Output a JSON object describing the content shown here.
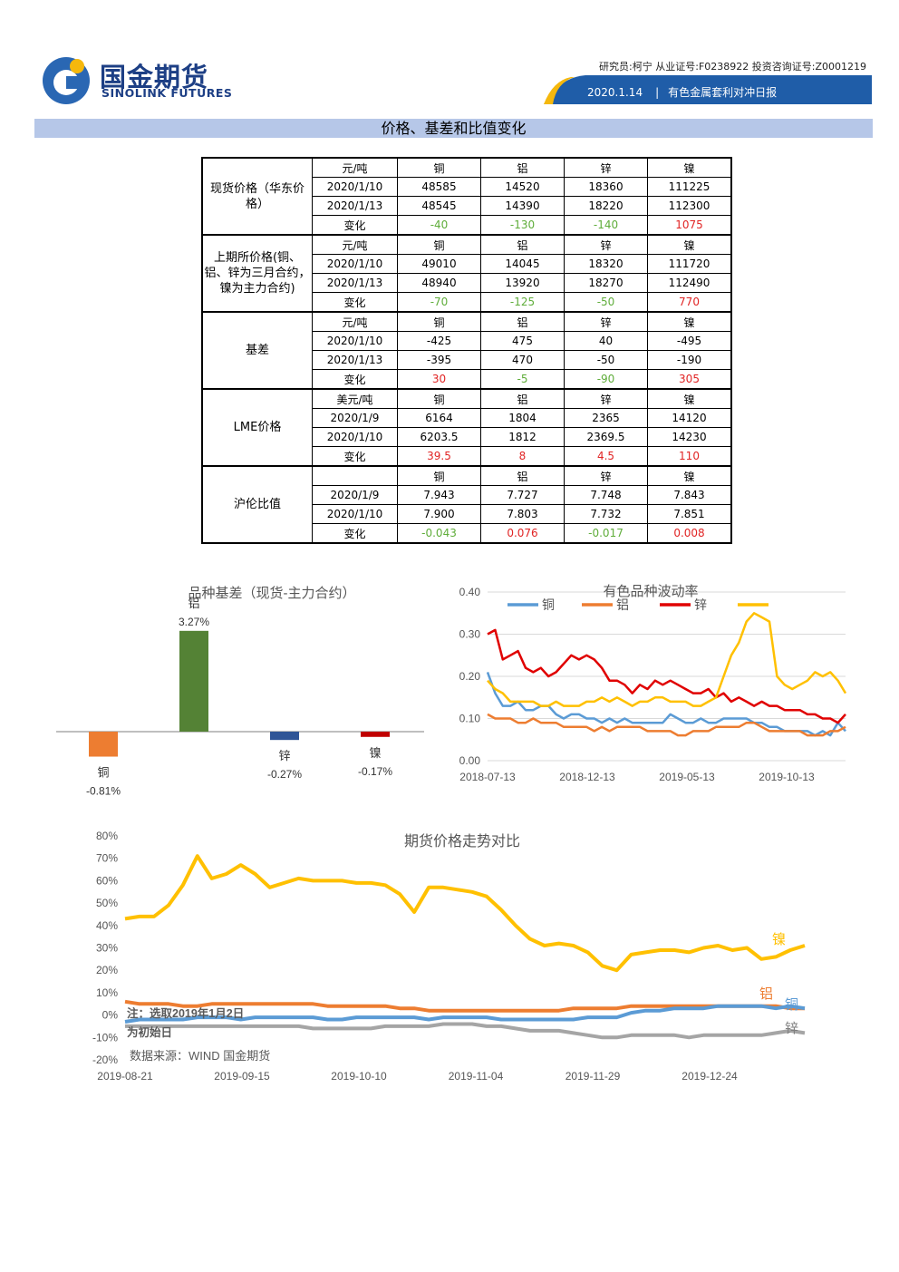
{
  "header": {
    "logo_cn": "国金期货",
    "logo_en": "SINOLINK FUTURES",
    "researcher": "研究员:柯宁 从业证号:F0238922 投资咨询证号:Z0001219",
    "date": "2020.1.14",
    "report_name": "有色金属套利对冲日报"
  },
  "section_title": "价格、基差和比值变化",
  "table": {
    "groups": [
      {
        "label": "现货价格（华东价格）",
        "rows": [
          [
            "元/吨",
            "铜",
            "铝",
            "锌",
            "镍"
          ],
          [
            "2020/1/10",
            "48585",
            "14520",
            "18360",
            "111225"
          ],
          [
            "2020/1/13",
            "48545",
            "14390",
            "18220",
            "112300"
          ],
          [
            "变化",
            "-40",
            "-130",
            "-140",
            "1075"
          ]
        ]
      },
      {
        "label": "上期所价格(铜、铝、锌为三月合约，镍为主力合约)",
        "rows": [
          [
            "元/吨",
            "铜",
            "铝",
            "锌",
            "镍"
          ],
          [
            "2020/1/10",
            "49010",
            "14045",
            "18320",
            "111720"
          ],
          [
            "2020/1/13",
            "48940",
            "13920",
            "18270",
            "112490"
          ],
          [
            "变化",
            "-70",
            "-125",
            "-50",
            "770"
          ]
        ]
      },
      {
        "label": "基差",
        "rows": [
          [
            "元/吨",
            "铜",
            "铝",
            "锌",
            "镍"
          ],
          [
            "2020/1/10",
            "-425",
            "475",
            "40",
            "-495"
          ],
          [
            "2020/1/13",
            "-395",
            "470",
            "-50",
            "-190"
          ],
          [
            "变化",
            "30",
            "-5",
            "-90",
            "305"
          ]
        ]
      },
      {
        "label": "LME价格",
        "rows": [
          [
            "美元/吨",
            "铜",
            "铝",
            "锌",
            "镍"
          ],
          [
            "2020/1/9",
            "6164",
            "1804",
            "2365",
            "14120"
          ],
          [
            "2020/1/10",
            "6203.5",
            "1812",
            "2369.5",
            "14230"
          ],
          [
            "变化",
            "39.5",
            "8",
            "4.5",
            "110"
          ]
        ]
      },
      {
        "label": "沪伦比值",
        "rows": [
          [
            "",
            "铜",
            "铝",
            "锌",
            "镍"
          ],
          [
            "2020/1/9",
            "7.943",
            "7.727",
            "7.748",
            "7.843"
          ],
          [
            "2020/1/10",
            "7.900",
            "7.803",
            "7.732",
            "7.851"
          ],
          [
            "变化",
            "-0.043",
            "0.076",
            "-0.017",
            "0.008"
          ]
        ]
      }
    ]
  },
  "chart_data": [
    {
      "type": "bar",
      "title": "品种基差（现货-主力合约）",
      "categories": [
        "铜",
        "铝",
        "锌",
        "镍"
      ],
      "values": [
        -0.81,
        3.27,
        -0.27,
        -0.17
      ],
      "value_labels": [
        "-0.81%",
        "3.27%",
        "-0.27%",
        "-0.17%"
      ],
      "colors": [
        "#ed7d31",
        "#548235",
        "#2f5597",
        "#c00000"
      ]
    },
    {
      "type": "line",
      "title": "有色品种波动率",
      "x_ticks": [
        "2018-07-13",
        "2018-12-13",
        "2019-05-13",
        "2019-10-13"
      ],
      "ylim": [
        0,
        0.4
      ],
      "y_ticks": [
        "0.00",
        "0.10",
        "0.20",
        "0.30",
        "0.40"
      ],
      "legend_position": "top",
      "series": [
        {
          "name": "铜",
          "color": "#5b9bd5",
          "values": [
            0.21,
            0.16,
            0.13,
            0.13,
            0.14,
            0.12,
            0.12,
            0.13,
            0.13,
            0.11,
            0.1,
            0.11,
            0.11,
            0.1,
            0.1,
            0.09,
            0.1,
            0.09,
            0.1,
            0.09,
            0.09,
            0.09,
            0.09,
            0.09,
            0.11,
            0.1,
            0.09,
            0.09,
            0.1,
            0.09,
            0.09,
            0.1,
            0.1,
            0.1,
            0.1,
            0.09,
            0.09,
            0.08,
            0.08,
            0.07,
            0.07,
            0.07,
            0.07,
            0.06,
            0.07,
            0.06,
            0.09,
            0.07
          ]
        },
        {
          "name": "铝",
          "color": "#ed7d31",
          "values": [
            0.11,
            0.1,
            0.1,
            0.1,
            0.09,
            0.09,
            0.1,
            0.09,
            0.09,
            0.09,
            0.08,
            0.08,
            0.08,
            0.08,
            0.07,
            0.08,
            0.07,
            0.08,
            0.08,
            0.08,
            0.08,
            0.07,
            0.07,
            0.07,
            0.07,
            0.06,
            0.06,
            0.07,
            0.07,
            0.07,
            0.08,
            0.08,
            0.08,
            0.08,
            0.09,
            0.09,
            0.08,
            0.07,
            0.07,
            0.07,
            0.07,
            0.07,
            0.06,
            0.06,
            0.06,
            0.07,
            0.07,
            0.08
          ]
        },
        {
          "name": "锌",
          "color": "#e00000",
          "values": [
            0.3,
            0.31,
            0.24,
            0.25,
            0.26,
            0.22,
            0.21,
            0.22,
            0.2,
            0.21,
            0.23,
            0.25,
            0.24,
            0.25,
            0.24,
            0.22,
            0.19,
            0.19,
            0.18,
            0.16,
            0.18,
            0.17,
            0.19,
            0.18,
            0.19,
            0.18,
            0.17,
            0.16,
            0.16,
            0.17,
            0.15,
            0.16,
            0.14,
            0.15,
            0.14,
            0.13,
            0.14,
            0.13,
            0.13,
            0.12,
            0.12,
            0.12,
            0.11,
            0.11,
            0.1,
            0.1,
            0.09,
            0.11
          ]
        },
        {
          "name": "",
          "color": "#ffc000",
          "values": [
            0.19,
            0.17,
            0.16,
            0.14,
            0.14,
            0.14,
            0.14,
            0.13,
            0.13,
            0.14,
            0.13,
            0.13,
            0.13,
            0.14,
            0.14,
            0.15,
            0.14,
            0.15,
            0.14,
            0.13,
            0.14,
            0.14,
            0.15,
            0.15,
            0.14,
            0.14,
            0.14,
            0.13,
            0.13,
            0.14,
            0.15,
            0.2,
            0.25,
            0.28,
            0.33,
            0.35,
            0.34,
            0.33,
            0.2,
            0.18,
            0.17,
            0.18,
            0.19,
            0.21,
            0.2,
            0.21,
            0.19,
            0.16
          ]
        }
      ]
    },
    {
      "type": "line",
      "title": "期货价格走势对比",
      "x_ticks": [
        "2019-08-21",
        "2019-09-15",
        "2019-10-10",
        "2019-11-04",
        "2019-11-29",
        "2019-12-24"
      ],
      "ylim": [
        -20,
        80
      ],
      "y_ticks": [
        "-20%",
        "-10%",
        "0%",
        "10%",
        "20%",
        "30%",
        "40%",
        "50%",
        "60%",
        "70%",
        "80%"
      ],
      "series": [
        {
          "name": "镍",
          "color": "#ffc000",
          "values": [
            43,
            44,
            44,
            49,
            58,
            71,
            61,
            63,
            67,
            63,
            57,
            59,
            61,
            60,
            60,
            60,
            59,
            59,
            58,
            54,
            46,
            57,
            57,
            56,
            55,
            53,
            47,
            40,
            34,
            31,
            32,
            31,
            28,
            22,
            20,
            27,
            28,
            29,
            29,
            28,
            30,
            31,
            29,
            30,
            25,
            26,
            29,
            31
          ]
        },
        {
          "name": "铝",
          "color": "#ed7d31",
          "values": [
            6,
            5,
            5,
            5,
            4,
            4,
            5,
            5,
            5,
            5,
            5,
            5,
            5,
            5,
            4,
            4,
            4,
            4,
            4,
            3,
            3,
            2,
            2,
            2,
            2,
            2,
            2,
            2,
            2,
            2,
            2,
            3,
            3,
            3,
            3,
            4,
            4,
            4,
            4,
            4,
            4,
            4,
            4,
            4,
            4,
            4,
            3,
            3
          ]
        },
        {
          "name": "铜",
          "color": "#5b9bd5",
          "values": [
            -3,
            -2,
            -2,
            -2,
            -2,
            -1,
            -1,
            -1,
            -2,
            -1,
            -1,
            -1,
            -1,
            -1,
            -2,
            -2,
            -1,
            -1,
            -1,
            -1,
            -1,
            -2,
            -1,
            -1,
            -1,
            -1,
            -2,
            -2,
            -2,
            -2,
            -2,
            -2,
            -1,
            -1,
            -1,
            1,
            2,
            2,
            3,
            3,
            3,
            4,
            4,
            4,
            4,
            3,
            4,
            3
          ]
        },
        {
          "name": "锌",
          "color": "#a5a5a5",
          "values": [
            -5,
            -5,
            -5,
            -5,
            -5,
            -5,
            -5,
            -5,
            -5,
            -5,
            -5,
            -5,
            -5,
            -6,
            -6,
            -6,
            -6,
            -6,
            -5,
            -5,
            -5,
            -5,
            -4,
            -4,
            -4,
            -5,
            -5,
            -6,
            -7,
            -7,
            -7,
            -8,
            -9,
            -10,
            -10,
            -9,
            -9,
            -9,
            -9,
            -10,
            -9,
            -9,
            -9,
            -9,
            -9,
            -8,
            -7,
            -8
          ]
        }
      ],
      "notes": [
        "注：选取2019年1月2日",
        "为初始日",
        "数据来源：WIND 国金期货"
      ]
    }
  ]
}
